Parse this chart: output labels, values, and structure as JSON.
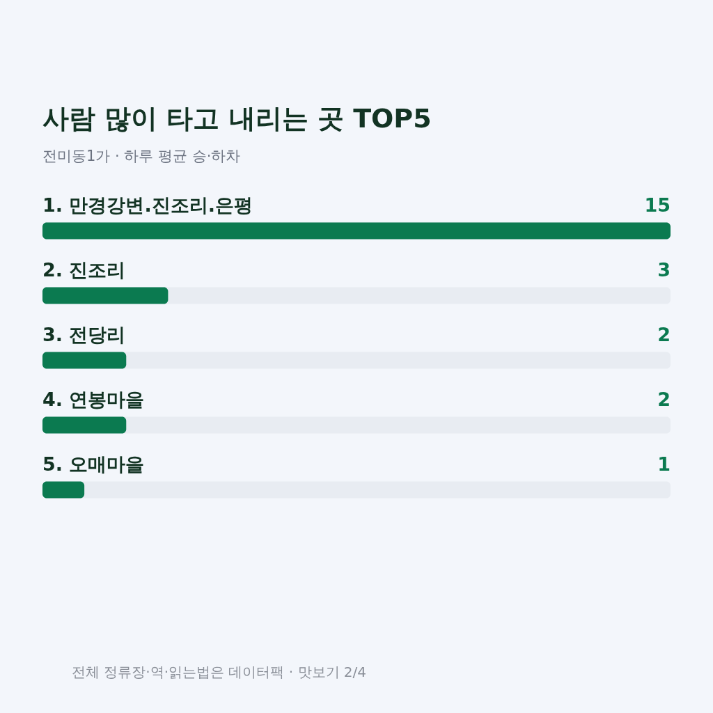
{
  "chart_data": {
    "type": "bar",
    "orientation": "horizontal",
    "title": "사람 많이 타고 내리는 곳 TOP5",
    "subtitle": "전미동1가 · 하루 평균 승·하차",
    "categories": [
      "1. 만경강변.진조리.은평",
      "2. 진조리",
      "3. 전당리",
      "4. 연봉마을",
      "5. 오매마을"
    ],
    "values": [
      15,
      3,
      2,
      2,
      1
    ],
    "color": "#0b7a50",
    "xlim": [
      0,
      15
    ],
    "data_labels": true,
    "tick_labels": false,
    "annotations": [
      "전체 정류장·역·읽는법은 데이터팩 · 맛보기 2/4"
    ]
  }
}
